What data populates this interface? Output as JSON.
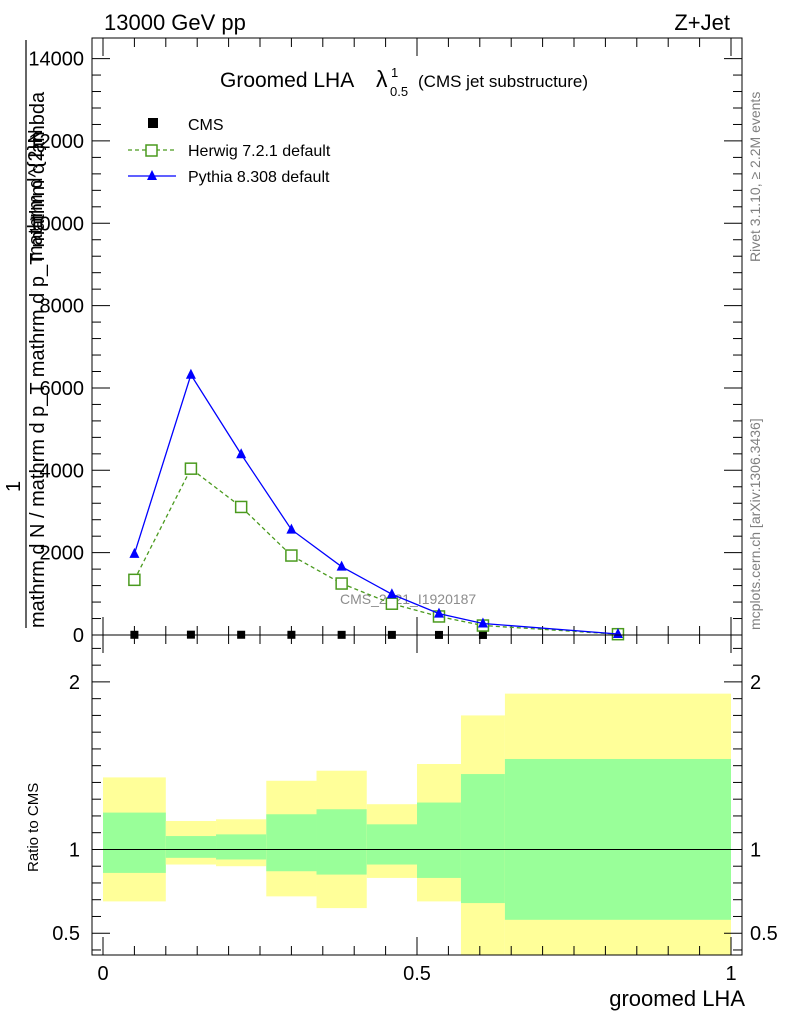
{
  "header": {
    "energy_label": "13000 GeV pp",
    "process_label": "Z+Jet"
  },
  "side": {
    "rivet_label": "Rivet 3.1.10, ≥ 2.2M events",
    "mcplots_label": "mcplots.cern.ch [arXiv:1306.3436]"
  },
  "chart_data": [
    {
      "type": "line",
      "title_main": "Groomed LHA",
      "title_lambda": "λ",
      "title_sup": "1",
      "title_sub": "0.5",
      "title_suffix": "(CMS jet substructure)",
      "ylabel_top": "mathrm d^{2}N",
      "ylabel_top_sup": "2",
      "ylabel_num": "1",
      "ylabel_den": "mathrm d N / mathrm d p_T mathrm d p_T mathrm d lambda",
      "ylim": [
        0,
        14500
      ],
      "xlim": [
        0,
        1
      ],
      "yticks": [
        0,
        2000,
        4000,
        6000,
        8000,
        10000,
        12000,
        14000
      ],
      "ytick_labels": [
        "0",
        "2000",
        "4000",
        "6000",
        "8000",
        "10000",
        "12000",
        "14000"
      ],
      "watermark": "CMS_2021_I1920187",
      "legend_position": "top-left",
      "series": [
        {
          "name": "CMS",
          "color": "#000000",
          "marker": "square-filled",
          "x": [
            0.05,
            0.14,
            0.22,
            0.3,
            0.38,
            0.46,
            0.535,
            0.605,
            0.82
          ],
          "y": [
            5,
            8,
            6,
            5,
            4,
            3,
            2,
            1,
            0.3
          ]
        },
        {
          "name": "Herwig 7.2.1 default",
          "color": "#4a9a1e",
          "marker": "square-open",
          "dashed": true,
          "x": [
            0.05,
            0.14,
            0.22,
            0.3,
            0.38,
            0.46,
            0.535,
            0.605,
            0.82
          ],
          "y": [
            1340,
            4040,
            3110,
            1930,
            1250,
            760,
            450,
            230,
            20
          ]
        },
        {
          "name": "Pythia 8.308 default",
          "color": "#0000ff",
          "marker": "triangle-filled",
          "dashed": false,
          "x": [
            0.05,
            0.14,
            0.22,
            0.3,
            0.38,
            0.46,
            0.535,
            0.605,
            0.82
          ],
          "y": [
            1970,
            6320,
            4390,
            2560,
            1660,
            990,
            520,
            280,
            25
          ]
        }
      ]
    },
    {
      "type": "area",
      "ylabel": "Ratio to CMS",
      "xlabel": "groomed LHA",
      "ylim": [
        0.37,
        2.28
      ],
      "xlim": [
        0,
        1
      ],
      "xticks": [
        0,
        0.5,
        1
      ],
      "xtick_labels": [
        "0",
        "0.5",
        "1"
      ],
      "yticks": [
        0.5,
        1,
        2
      ],
      "ytick_labels": [
        "0.5",
        "1",
        "2"
      ],
      "reference_line": 1,
      "bands": {
        "outer_color": "#ffff99",
        "inner_color": "#99ff99",
        "bins": [
          {
            "x0": 0.0,
            "x1": 0.1,
            "outer": [
              0.69,
              1.43
            ],
            "inner": [
              0.86,
              1.22
            ]
          },
          {
            "x0": 0.1,
            "x1": 0.18,
            "outer": [
              0.91,
              1.17
            ],
            "inner": [
              0.95,
              1.08
            ]
          },
          {
            "x0": 0.18,
            "x1": 0.26,
            "outer": [
              0.9,
              1.18
            ],
            "inner": [
              0.94,
              1.09
            ]
          },
          {
            "x0": 0.26,
            "x1": 0.34,
            "outer": [
              0.72,
              1.41
            ],
            "inner": [
              0.87,
              1.21
            ]
          },
          {
            "x0": 0.34,
            "x1": 0.42,
            "outer": [
              0.65,
              1.47
            ],
            "inner": [
              0.85,
              1.24
            ]
          },
          {
            "x0": 0.42,
            "x1": 0.5,
            "outer": [
              0.83,
              1.27
            ],
            "inner": [
              0.91,
              1.15
            ]
          },
          {
            "x0": 0.5,
            "x1": 0.57,
            "outer": [
              0.69,
              1.51
            ],
            "inner": [
              0.83,
              1.28
            ]
          },
          {
            "x0": 0.57,
            "x1": 0.64,
            "outer": [
              0.37,
              1.8
            ],
            "inner": [
              0.68,
              1.45
            ]
          },
          {
            "x0": 0.64,
            "x1": 1.0,
            "outer": [
              0.37,
              1.93
            ],
            "inner": [
              0.58,
              1.54
            ]
          }
        ]
      }
    }
  ]
}
